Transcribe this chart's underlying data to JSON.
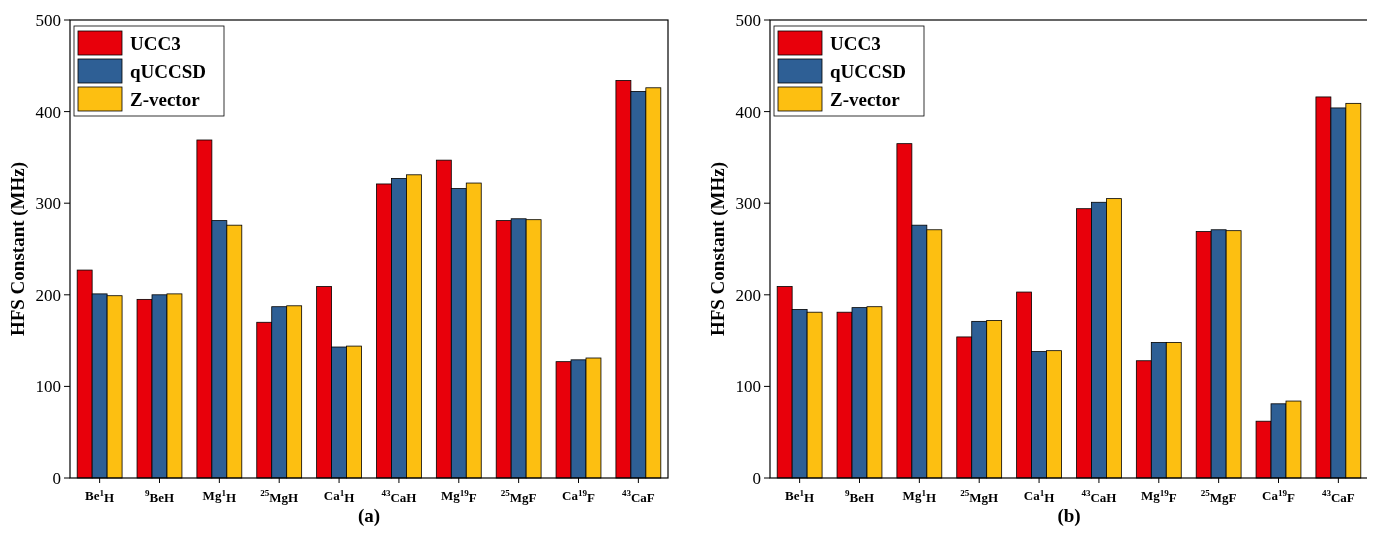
{
  "chart_data": [
    {
      "type": "bar",
      "xlabel": "(a)",
      "ylabel": "HFS Constant (MHz)",
      "categories": [
        "Be$^{1}$H",
        "$^{9}$BeH",
        "Mg$^{1}$H",
        "$^{25}$MgH",
        "Ca$^{1}$H",
        "$^{43}$CaH",
        "Mg$^{19}$F",
        "$^{25}$MgF",
        "Ca$^{19}$F",
        "$^{43}$CaF"
      ],
      "series": [
        {
          "name": "UCC3",
          "color": "#e8000b",
          "values": [
            227,
            195,
            369,
            170,
            209,
            321,
            347,
            281,
            127,
            434
          ]
        },
        {
          "name": "qUCCSD",
          "color": "#2e5f95",
          "values": [
            201,
            200,
            281,
            187,
            143,
            327,
            316,
            283,
            129,
            422
          ]
        },
        {
          "name": "Z-vector",
          "color": "#fdbf11",
          "values": [
            199,
            201,
            276,
            188,
            144,
            331,
            322,
            282,
            131,
            426
          ]
        }
      ],
      "ylim": [
        0,
        500
      ],
      "yticks": [
        0,
        100,
        200,
        300,
        400,
        500
      ],
      "legend": "top left"
    },
    {
      "type": "bar",
      "xlabel": "(b)",
      "ylabel": "HFS Constant (MHz)",
      "categories": [
        "Be$^{1}$H",
        "$^{9}$BeH",
        "Mg$^{1}$H",
        "$^{25}$MgH",
        "Ca$^{1}$H",
        "$^{43}$CaH",
        "Mg$^{19}$F",
        "$^{25}$MgF",
        "Ca$^{19}$F",
        "$^{43}$CaF"
      ],
      "series": [
        {
          "name": "UCC3",
          "color": "#e8000b",
          "values": [
            209,
            181,
            365,
            154,
            203,
            294,
            128,
            269,
            62,
            416
          ]
        },
        {
          "name": "qUCCSD",
          "color": "#2e5f95",
          "values": [
            184,
            186,
            276,
            171,
            138,
            301,
            148,
            271,
            81,
            404
          ]
        },
        {
          "name": "Z-vector",
          "color": "#fdbf11",
          "values": [
            181,
            187,
            271,
            172,
            139,
            305,
            148,
            270,
            84,
            409
          ]
        }
      ],
      "ylim": [
        0,
        500
      ],
      "yticks": [
        0,
        100,
        200,
        300,
        400,
        500
      ],
      "legend": "top left"
    }
  ]
}
